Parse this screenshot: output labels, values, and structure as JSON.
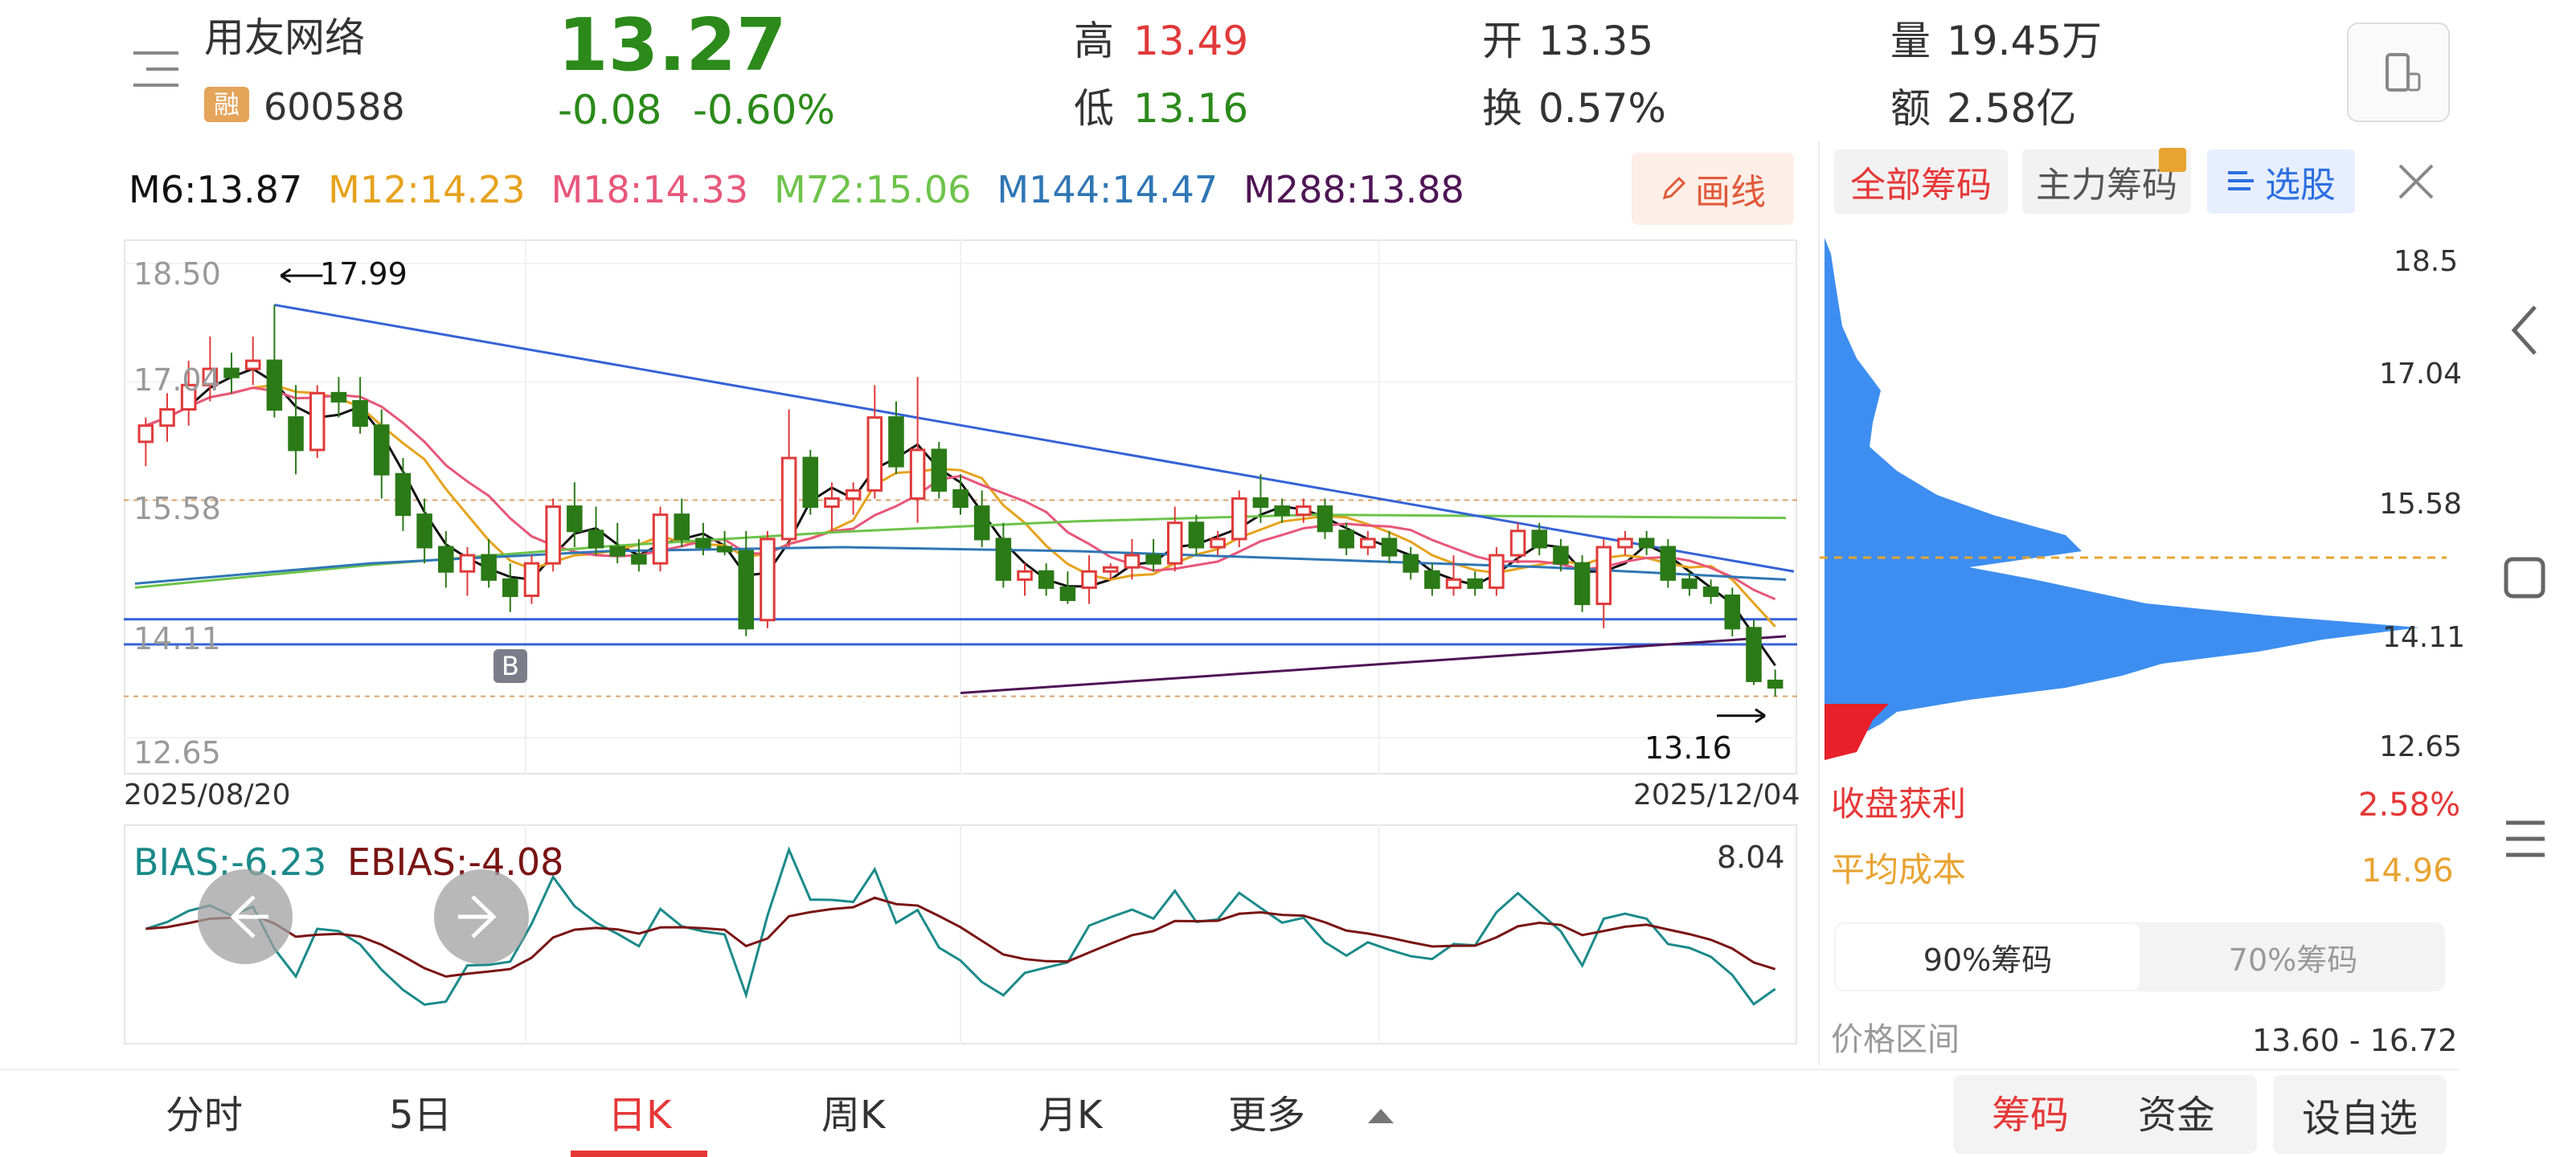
{
  "colors": {
    "up": "#e03a3a",
    "down": "#2b7a17",
    "accent_red": "#e63737",
    "blue": "#3d8ef0",
    "orange": "#e8a330"
  },
  "quote": {
    "name": "用友网络",
    "code": "600588",
    "badge": "融",
    "price": "13.27",
    "change": "-0.08",
    "change_pct": "-0.60%",
    "high_label": "高",
    "high": "13.49",
    "low_label": "低",
    "low": "13.16",
    "open_label": "开",
    "open": "13.35",
    "turnover_label": "换",
    "turnover": "0.57%",
    "volume_label": "量",
    "volume": "19.45万",
    "amount_label": "额",
    "amount": "2.58亿"
  },
  "ma_legend": [
    {
      "label": "M6:13.87",
      "color": "#111111"
    },
    {
      "label": "M12:14.23",
      "color": "#e6a21c"
    },
    {
      "label": "M18:14.33",
      "color": "#e8567a"
    },
    {
      "label": "M72:15.06",
      "color": "#6dc34a"
    },
    {
      "label": "M144:14.47",
      "color": "#2f76b5"
    },
    {
      "label": "M288:13.88",
      "color": "#4f1555"
    }
  ],
  "draw_button": "画线",
  "chart": {
    "y_labels": [
      "18.50",
      "17.04",
      "15.58",
      "14.11",
      "12.65"
    ],
    "max_annotation": "17.99",
    "min_annotation": "13.16",
    "date_start": "2025/08/20",
    "date_end": "2025/12/04",
    "b_marker": "B"
  },
  "indicator": {
    "bias": "BIAS:-6.23",
    "ebias": "EBIAS:-4.08",
    "max_value": "8.04"
  },
  "chip_panel": {
    "tabs": [
      "全部筹码",
      "主力筹码",
      "选股"
    ],
    "y_labels": [
      "18.5",
      "17.04",
      "15.58",
      "14.11",
      "12.65"
    ],
    "profit_label": "收盘获利",
    "profit_value": "2.58%",
    "avg_cost_label": "平均成本",
    "avg_cost_value": "14.96",
    "seg_90": "90%筹码",
    "seg_70": "70%筹码",
    "range_label": "价格区间",
    "range_value": "13.60 - 16.72"
  },
  "bottom_tabs": [
    "分时",
    "5日",
    "日K",
    "周K",
    "月K",
    "更多"
  ],
  "bottom_actions": {
    "chips": "筹码",
    "funds": "资金",
    "watchlist": "设自选"
  },
  "chart_data": {
    "type": "candlestick",
    "period": "daily",
    "date_range": [
      "2025/08/20",
      "2025/12/04"
    ],
    "ylim": [
      12.65,
      18.5
    ],
    "y_ticks": [
      18.5,
      17.04,
      15.58,
      14.11,
      12.65
    ],
    "ohlc": [
      [
        16.3,
        16.6,
        16.0,
        16.5
      ],
      [
        16.5,
        16.9,
        16.3,
        16.7
      ],
      [
        16.7,
        17.3,
        16.5,
        17.0
      ],
      [
        17.0,
        17.6,
        16.8,
        17.2
      ],
      [
        17.2,
        17.4,
        16.9,
        17.1
      ],
      [
        17.2,
        17.6,
        17.0,
        17.3
      ],
      [
        17.3,
        17.99,
        16.6,
        16.7
      ],
      [
        16.6,
        17.0,
        15.9,
        16.2
      ],
      [
        16.2,
        17.0,
        16.1,
        16.9
      ],
      [
        16.9,
        17.1,
        16.6,
        16.8
      ],
      [
        16.8,
        17.1,
        16.4,
        16.5
      ],
      [
        16.5,
        16.7,
        15.6,
        15.9
      ],
      [
        15.9,
        16.1,
        15.2,
        15.4
      ],
      [
        15.4,
        15.6,
        14.8,
        15.0
      ],
      [
        15.0,
        15.2,
        14.5,
        14.7
      ],
      [
        14.7,
        15.0,
        14.4,
        14.9
      ],
      [
        14.9,
        15.1,
        14.5,
        14.6
      ],
      [
        14.6,
        14.8,
        14.2,
        14.4
      ],
      [
        14.4,
        14.9,
        14.3,
        14.8
      ],
      [
        14.8,
        15.6,
        14.7,
        15.5
      ],
      [
        15.5,
        15.8,
        15.0,
        15.2
      ],
      [
        15.2,
        15.5,
        14.9,
        15.0
      ],
      [
        15.0,
        15.3,
        14.8,
        14.9
      ],
      [
        14.9,
        15.1,
        14.7,
        14.8
      ],
      [
        14.8,
        15.5,
        14.7,
        15.4
      ],
      [
        15.4,
        15.6,
        15.0,
        15.1
      ],
      [
        15.1,
        15.3,
        14.9,
        15.0
      ],
      [
        15.0,
        15.2,
        14.9,
        14.95
      ],
      [
        14.95,
        15.2,
        13.9,
        14.0
      ],
      [
        14.1,
        15.2,
        14.0,
        15.1
      ],
      [
        15.1,
        16.7,
        15.0,
        16.1
      ],
      [
        16.1,
        16.2,
        15.4,
        15.5
      ],
      [
        15.5,
        15.8,
        15.2,
        15.6
      ],
      [
        15.6,
        15.8,
        15.4,
        15.7
      ],
      [
        15.7,
        17.0,
        15.6,
        16.6
      ],
      [
        16.6,
        16.8,
        15.9,
        16.0
      ],
      [
        15.6,
        17.1,
        15.3,
        16.2
      ],
      [
        16.2,
        16.3,
        15.6,
        15.7
      ],
      [
        15.7,
        15.9,
        15.4,
        15.5
      ],
      [
        15.5,
        15.7,
        15.0,
        15.1
      ],
      [
        15.1,
        15.3,
        14.5,
        14.6
      ],
      [
        14.6,
        14.8,
        14.4,
        14.7
      ],
      [
        14.7,
        14.8,
        14.4,
        14.5
      ],
      [
        14.5,
        14.7,
        14.3,
        14.35
      ],
      [
        14.5,
        14.9,
        14.3,
        14.7
      ],
      [
        14.7,
        14.8,
        14.6,
        14.75
      ],
      [
        14.75,
        15.1,
        14.6,
        14.9
      ],
      [
        14.9,
        15.1,
        14.7,
        14.8
      ],
      [
        14.8,
        15.5,
        14.7,
        15.3
      ],
      [
        15.3,
        15.4,
        14.9,
        15.0
      ],
      [
        15.0,
        15.2,
        14.9,
        15.1
      ],
      [
        15.1,
        15.7,
        15.0,
        15.6
      ],
      [
        15.6,
        15.9,
        15.3,
        15.5
      ],
      [
        15.5,
        15.6,
        15.3,
        15.4
      ],
      [
        15.4,
        15.6,
        15.3,
        15.5
      ],
      [
        15.5,
        15.6,
        15.1,
        15.2
      ],
      [
        15.2,
        15.3,
        14.9,
        15.0
      ],
      [
        15.0,
        15.2,
        14.9,
        15.1
      ],
      [
        15.1,
        15.2,
        14.8,
        14.9
      ],
      [
        14.9,
        15.0,
        14.6,
        14.7
      ],
      [
        14.7,
        14.8,
        14.4,
        14.5
      ],
      [
        14.5,
        14.9,
        14.4,
        14.6
      ],
      [
        14.6,
        14.7,
        14.4,
        14.5
      ],
      [
        14.5,
        15.0,
        14.4,
        14.9
      ],
      [
        14.9,
        15.3,
        14.8,
        15.2
      ],
      [
        15.2,
        15.3,
        14.9,
        15.0
      ],
      [
        15.0,
        15.1,
        14.7,
        14.8
      ],
      [
        14.8,
        14.9,
        14.2,
        14.3
      ],
      [
        14.3,
        15.1,
        14.0,
        15.0
      ],
      [
        15.0,
        15.2,
        14.9,
        15.1
      ],
      [
        15.1,
        15.2,
        14.9,
        15.0
      ],
      [
        15.0,
        15.1,
        14.5,
        14.6
      ],
      [
        14.6,
        14.7,
        14.4,
        14.5
      ],
      [
        14.5,
        14.6,
        14.3,
        14.4
      ],
      [
        14.4,
        14.5,
        13.9,
        14.0
      ],
      [
        14.0,
        14.1,
        13.3,
        13.35
      ],
      [
        13.35,
        13.49,
        13.16,
        13.27
      ]
    ],
    "overlays": {
      "trendline_from": "17.99",
      "support_lines": [
        14.11,
        13.8
      ],
      "dashed_levels": [
        15.58,
        13.16
      ]
    }
  }
}
